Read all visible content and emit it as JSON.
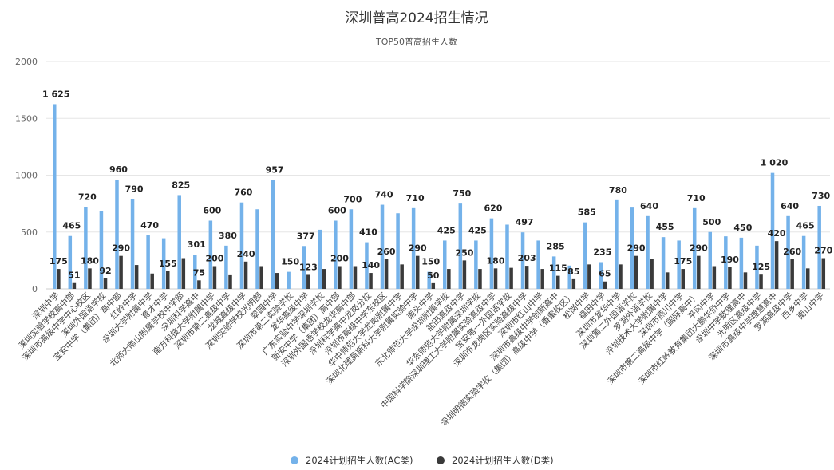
{
  "colors": {
    "ac": "#74b2ea",
    "d": "#3a3a3a"
  },
  "chart_data": {
    "type": "bar",
    "title": "深圳普高2024招生情况",
    "subtitle": "TOP50普高招生人数",
    "ylim": [
      0,
      2000
    ],
    "yticks": [
      0,
      500,
      1000,
      1500,
      2000
    ],
    "grid": true,
    "legend_position": "bottom-center",
    "categories": [
      "深圳中学",
      "深圳实验学校高中部",
      "深圳市高级中学中心校区",
      "深圳外国语学校",
      "宝安中学（集团）高中部",
      "红岭中学",
      "深圳大学附属中学",
      "育才中学",
      "北师大南山附属学校中学部",
      "深圳科学高中",
      "南方科技大学附属中学",
      "深圳市第二高级中学",
      "龙城高级中学",
      "深圳实验学校光明部",
      "翠园中学",
      "深圳市第二实验学校",
      "龙华高级中学",
      "广东实验中学深圳学校",
      "新安中学（集团）高中部",
      "深圳外国语学校龙华高中部",
      "深圳科学高中龙岗分校",
      "深圳市高级中学东校区",
      "华中师范大学龙岗附属中学",
      "深圳北理莫斯科大学附属实验中学",
      "南头中学",
      "东北师范大学深圳附属学校",
      "盐田高级中学",
      "华东师范大学附属深圳学校",
      "中国科学院深圳理工大学附属实验高级中学",
      "宝安第一外国语学校",
      "深圳市龙岗区实验高级中学",
      "深圳市红山中学",
      "深圳市高级中学创新高中",
      "深圳明德实验学校（集团）高级中学（香蜜校区）",
      "松岗中学",
      "福田中学",
      "深圳市龙华中学",
      "深圳第二外国语学校",
      "罗湖外语学校",
      "深圳技术大学附属中学",
      "深圳市燕川中学",
      "深圳市第二高级中学（国际高中）",
      "平冈中学",
      "深圳市红岭教育集团大鹏华侨中学",
      "深圳中学数理高中",
      "光明区高级中学",
      "深圳市高级中学理慧高中",
      "罗湖高级中学",
      "西乡中学",
      "南山中学"
    ],
    "series": [
      {
        "name": "2024计划招生人数(AC类)",
        "values": [
          1625,
          465,
          720,
          685,
          960,
          790,
          470,
          445,
          825,
          301,
          600,
          380,
          760,
          700,
          957,
          150,
          377,
          520,
          600,
          700,
          410,
          740,
          665,
          710,
          150,
          425,
          750,
          425,
          620,
          565,
          497,
          425,
          285,
          205,
          585,
          235,
          780,
          715,
          640,
          455,
          425,
          710,
          500,
          462,
          450,
          380,
          1020,
          640,
          465,
          730
        ]
      },
      {
        "name": "2024计划招生人数(D类)",
        "values": [
          175,
          51,
          180,
          92,
          290,
          210,
          135,
          155,
          270,
          75,
          200,
          120,
          240,
          200,
          140,
          0,
          123,
          175,
          200,
          200,
          140,
          260,
          215,
          290,
          50,
          175,
          250,
          175,
          180,
          185,
          203,
          175,
          115,
          85,
          215,
          65,
          215,
          290,
          260,
          145,
          175,
          290,
          200,
          190,
          145,
          125,
          420,
          260,
          180,
          270
        ]
      }
    ],
    "ac_labels": [
      {
        "i": 0,
        "text": "1 625"
      },
      {
        "i": 1,
        "text": "465"
      },
      {
        "i": 2,
        "text": "720"
      },
      {
        "i": 4,
        "text": "960"
      },
      {
        "i": 5,
        "text": "790"
      },
      {
        "i": 6,
        "text": "470"
      },
      {
        "i": 8,
        "text": "825"
      },
      {
        "i": 9,
        "text": "301"
      },
      {
        "i": 10,
        "text": "600"
      },
      {
        "i": 11,
        "text": "380"
      },
      {
        "i": 12,
        "text": "760"
      },
      {
        "i": 14,
        "text": "957"
      },
      {
        "i": 15,
        "text": "150"
      },
      {
        "i": 16,
        "text": "377"
      },
      {
        "i": 18,
        "text": "600"
      },
      {
        "i": 19,
        "text": "700"
      },
      {
        "i": 20,
        "text": "410"
      },
      {
        "i": 21,
        "text": "740"
      },
      {
        "i": 23,
        "text": "710"
      },
      {
        "i": 24,
        "text": "150"
      },
      {
        "i": 25,
        "text": "425"
      },
      {
        "i": 26,
        "text": "750"
      },
      {
        "i": 27,
        "text": "425"
      },
      {
        "i": 28,
        "text": "620"
      },
      {
        "i": 30,
        "text": "497"
      },
      {
        "i": 32,
        "text": "285"
      },
      {
        "i": 34,
        "text": "585"
      },
      {
        "i": 35,
        "text": "235"
      },
      {
        "i": 36,
        "text": "780"
      },
      {
        "i": 38,
        "text": "640"
      },
      {
        "i": 39,
        "text": "455"
      },
      {
        "i": 41,
        "text": "710"
      },
      {
        "i": 42,
        "text": "500"
      },
      {
        "i": 44,
        "text": "450"
      },
      {
        "i": 46,
        "text": "1 020"
      },
      {
        "i": 47,
        "text": "640"
      },
      {
        "i": 48,
        "text": "465"
      },
      {
        "i": 49,
        "text": "730"
      }
    ],
    "d_labels": [
      {
        "i": 0,
        "text": "175"
      },
      {
        "i": 1,
        "text": "51"
      },
      {
        "i": 2,
        "text": "180"
      },
      {
        "i": 3,
        "text": "92"
      },
      {
        "i": 4,
        "text": "290"
      },
      {
        "i": 7,
        "text": "155"
      },
      {
        "i": 9,
        "text": "75"
      },
      {
        "i": 10,
        "text": "200"
      },
      {
        "i": 12,
        "text": "240"
      },
      {
        "i": 16,
        "text": "123"
      },
      {
        "i": 18,
        "text": "200"
      },
      {
        "i": 20,
        "text": "140"
      },
      {
        "i": 21,
        "text": "260"
      },
      {
        "i": 23,
        "text": "290"
      },
      {
        "i": 24,
        "text": "50"
      },
      {
        "i": 26,
        "text": "250"
      },
      {
        "i": 28,
        "text": "180"
      },
      {
        "i": 30,
        "text": "203"
      },
      {
        "i": 32,
        "text": "115"
      },
      {
        "i": 33,
        "text": "85"
      },
      {
        "i": 35,
        "text": "65"
      },
      {
        "i": 37,
        "text": "290"
      },
      {
        "i": 40,
        "text": "175"
      },
      {
        "i": 41,
        "text": "290"
      },
      {
        "i": 43,
        "text": "190"
      },
      {
        "i": 45,
        "text": "125"
      },
      {
        "i": 46,
        "text": "420"
      },
      {
        "i": 47,
        "text": "260"
      },
      {
        "i": 49,
        "text": "270"
      }
    ]
  }
}
